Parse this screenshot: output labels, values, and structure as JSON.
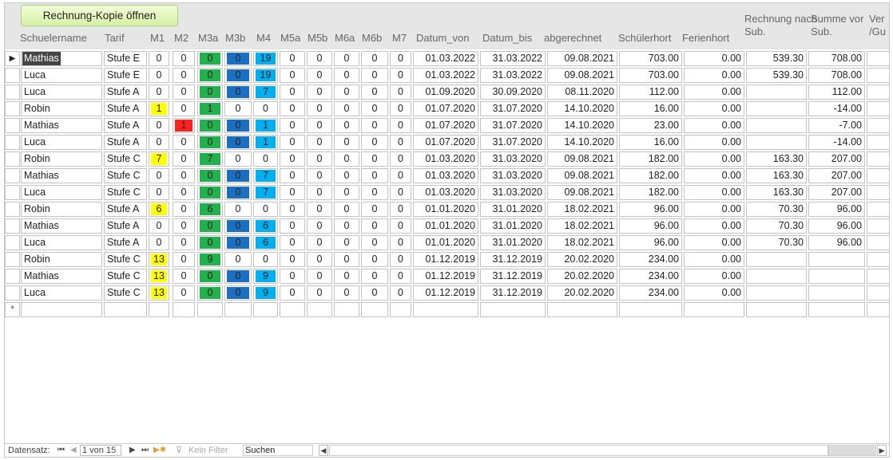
{
  "toolbar": {
    "open_copy_label": "Rechnung-Kopie öffnen"
  },
  "columns": [
    {
      "key": "name",
      "label": "Schuelername"
    },
    {
      "key": "tarif",
      "label": "Tarif"
    },
    {
      "key": "m1",
      "label": "M1"
    },
    {
      "key": "m2",
      "label": "M2"
    },
    {
      "key": "m3a",
      "label": "M3a"
    },
    {
      "key": "m3b",
      "label": "M3b"
    },
    {
      "key": "m4",
      "label": "M4"
    },
    {
      "key": "m5a",
      "label": "M5a"
    },
    {
      "key": "m5b",
      "label": "M5b"
    },
    {
      "key": "m6a",
      "label": "M6a"
    },
    {
      "key": "m6b",
      "label": "M6b"
    },
    {
      "key": "m7",
      "label": "M7"
    },
    {
      "key": "von",
      "label": "Datum_von"
    },
    {
      "key": "bis",
      "label": "Datum_bis"
    },
    {
      "key": "abg",
      "label": "abgerechnet"
    },
    {
      "key": "hort",
      "label": "Schülerhort"
    },
    {
      "key": "ferien",
      "label": "Ferienhort"
    },
    {
      "key": "nach",
      "label": "Rechnung nach Sub."
    },
    {
      "key": "vor",
      "label": "Summe vor Sub."
    },
    {
      "key": "ver",
      "label": "Ver /Gu"
    }
  ],
  "colors": {
    "yellow": "#ffff00",
    "red": "#ff2020",
    "green": "#22b14c",
    "darkblue": "#1a6fc0",
    "lightblue": "#00b0f0"
  },
  "rows": [
    {
      "name": "Mathias",
      "tarif": "Stufe E",
      "m1": "0",
      "m2": "0",
      "m3a": "0",
      "m3b": "0",
      "m4": "19",
      "m5a": "0",
      "m5b": "0",
      "m6a": "0",
      "m6b": "0",
      "m7": "0",
      "von": "01.03.2022",
      "bis": "31.03.2022",
      "abg": "09.08.2021",
      "hort": "703.00",
      "ferien": "0.00",
      "nach": "539.30",
      "vor": "708.00",
      "ver": ""
    },
    {
      "name": "Luca",
      "tarif": "Stufe E",
      "m1": "0",
      "m2": "0",
      "m3a": "0",
      "m3b": "0",
      "m4": "19",
      "m5a": "0",
      "m5b": "0",
      "m6a": "0",
      "m6b": "0",
      "m7": "0",
      "von": "01.03.2022",
      "bis": "31.03.2022",
      "abg": "09.08.2021",
      "hort": "703.00",
      "ferien": "0.00",
      "nach": "539.30",
      "vor": "708.00",
      "ver": ""
    },
    {
      "name": "Luca",
      "tarif": "Stufe A",
      "m1": "0",
      "m2": "0",
      "m3a": "0",
      "m3b": "0",
      "m4": "7",
      "m5a": "0",
      "m5b": "0",
      "m6a": "0",
      "m6b": "0",
      "m7": "0",
      "von": "01.09.2020",
      "bis": "30.09.2020",
      "abg": "08.11.2020",
      "hort": "112.00",
      "ferien": "0.00",
      "nach": "",
      "vor": "112.00",
      "ver": ""
    },
    {
      "name": "Robin",
      "tarif": "Stufe A",
      "m1": "1",
      "m2": "0",
      "m3a": "1",
      "m3b": "0",
      "m4": "0",
      "m5a": "0",
      "m5b": "0",
      "m6a": "0",
      "m6b": "0",
      "m7": "0",
      "von": "01.07.2020",
      "bis": "31.07.2020",
      "abg": "14.10.2020",
      "hort": "16.00",
      "ferien": "0.00",
      "nach": "",
      "vor": "-14.00",
      "ver": ""
    },
    {
      "name": "Mathias",
      "tarif": "Stufe A",
      "m1": "0",
      "m2": "1",
      "m3a": "0",
      "m3b": "0",
      "m4": "1",
      "m5a": "0",
      "m5b": "0",
      "m6a": "0",
      "m6b": "0",
      "m7": "0",
      "von": "01.07.2020",
      "bis": "31.07.2020",
      "abg": "14.10.2020",
      "hort": "23.00",
      "ferien": "0.00",
      "nach": "",
      "vor": "-7.00",
      "ver": ""
    },
    {
      "name": "Luca",
      "tarif": "Stufe A",
      "m1": "0",
      "m2": "0",
      "m3a": "0",
      "m3b": "0",
      "m4": "1",
      "m5a": "0",
      "m5b": "0",
      "m6a": "0",
      "m6b": "0",
      "m7": "0",
      "von": "01.07.2020",
      "bis": "31.07.2020",
      "abg": "14.10.2020",
      "hort": "16.00",
      "ferien": "0.00",
      "nach": "",
      "vor": "-14.00",
      "ver": ""
    },
    {
      "name": "Robin",
      "tarif": "Stufe C",
      "m1": "7",
      "m2": "0",
      "m3a": "7",
      "m3b": "0",
      "m4": "0",
      "m5a": "0",
      "m5b": "0",
      "m6a": "0",
      "m6b": "0",
      "m7": "0",
      "von": "01.03.2020",
      "bis": "31.03.2020",
      "abg": "09.08.2021",
      "hort": "182.00",
      "ferien": "0.00",
      "nach": "163.30",
      "vor": "207.00",
      "ver": ""
    },
    {
      "name": "Mathias",
      "tarif": "Stufe C",
      "m1": "0",
      "m2": "0",
      "m3a": "0",
      "m3b": "0",
      "m4": "7",
      "m5a": "0",
      "m5b": "0",
      "m6a": "0",
      "m6b": "0",
      "m7": "0",
      "von": "01.03.2020",
      "bis": "31.03.2020",
      "abg": "09.08.2021",
      "hort": "182.00",
      "ferien": "0.00",
      "nach": "163.30",
      "vor": "207.00",
      "ver": ""
    },
    {
      "name": "Luca",
      "tarif": "Stufe C",
      "m1": "0",
      "m2": "0",
      "m3a": "0",
      "m3b": "0",
      "m4": "7",
      "m5a": "0",
      "m5b": "0",
      "m6a": "0",
      "m6b": "0",
      "m7": "0",
      "von": "01.03.2020",
      "bis": "31.03.2020",
      "abg": "09.08.2021",
      "hort": "182.00",
      "ferien": "0.00",
      "nach": "163.30",
      "vor": "207.00",
      "ver": ""
    },
    {
      "name": "Robin",
      "tarif": "Stufe A",
      "m1": "6",
      "m2": "0",
      "m3a": "6",
      "m3b": "0",
      "m4": "0",
      "m5a": "0",
      "m5b": "0",
      "m6a": "0",
      "m6b": "0",
      "m7": "0",
      "von": "01.01.2020",
      "bis": "31.01.2020",
      "abg": "18.02.2021",
      "hort": "96.00",
      "ferien": "0.00",
      "nach": "70.30",
      "vor": "96.00",
      "ver": ""
    },
    {
      "name": "Mathias",
      "tarif": "Stufe A",
      "m1": "0",
      "m2": "0",
      "m3a": "0",
      "m3b": "0",
      "m4": "6",
      "m5a": "0",
      "m5b": "0",
      "m6a": "0",
      "m6b": "0",
      "m7": "0",
      "von": "01.01.2020",
      "bis": "31.01.2020",
      "abg": "18.02.2021",
      "hort": "96.00",
      "ferien": "0.00",
      "nach": "70.30",
      "vor": "96.00",
      "ver": ""
    },
    {
      "name": "Luca",
      "tarif": "Stufe A",
      "m1": "0",
      "m2": "0",
      "m3a": "0",
      "m3b": "0",
      "m4": "6",
      "m5a": "0",
      "m5b": "0",
      "m6a": "0",
      "m6b": "0",
      "m7": "0",
      "von": "01.01.2020",
      "bis": "31.01.2020",
      "abg": "18.02.2021",
      "hort": "96.00",
      "ferien": "0.00",
      "nach": "70.30",
      "vor": "96.00",
      "ver": ""
    },
    {
      "name": "Robin",
      "tarif": "Stufe C",
      "m1": "13",
      "m2": "0",
      "m3a": "9",
      "m3b": "0",
      "m4": "0",
      "m5a": "0",
      "m5b": "0",
      "m6a": "0",
      "m6b": "0",
      "m7": "0",
      "von": "01.12.2019",
      "bis": "31.12.2019",
      "abg": "20.02.2020",
      "hort": "234.00",
      "ferien": "0.00",
      "nach": "",
      "vor": "",
      "ver": ""
    },
    {
      "name": "Mathias",
      "tarif": "Stufe C",
      "m1": "13",
      "m2": "0",
      "m3a": "0",
      "m3b": "0",
      "m4": "9",
      "m5a": "0",
      "m5b": "0",
      "m6a": "0",
      "m6b": "0",
      "m7": "0",
      "von": "01.12.2019",
      "bis": "31.12.2019",
      "abg": "20.02.2020",
      "hort": "234.00",
      "ferien": "0.00",
      "nach": "",
      "vor": "",
      "ver": ""
    },
    {
      "name": "Luca",
      "tarif": "Stufe C",
      "m1": "13",
      "m2": "0",
      "m3a": "0",
      "m3b": "0",
      "m4": "9",
      "m5a": "0",
      "m5b": "0",
      "m6a": "0",
      "m6b": "0",
      "m7": "0",
      "von": "01.12.2019",
      "bis": "31.12.2019",
      "abg": "20.02.2020",
      "hort": "234.00",
      "ferien": "0.00",
      "nach": "",
      "vor": "",
      "ver": ""
    }
  ],
  "new_record_marker": "*",
  "current_record_marker": "▶",
  "footer": {
    "record_label": "Datensatz:",
    "first_icon": "first-record-icon",
    "prev_icon": "prev-record-icon",
    "position": "1 von 15",
    "next_icon": "next-record-icon",
    "last_icon": "last-record-icon",
    "new_icon": "new-record-icon",
    "filter_label": "Kein Filter",
    "search_placeholder": "Suchen"
  }
}
